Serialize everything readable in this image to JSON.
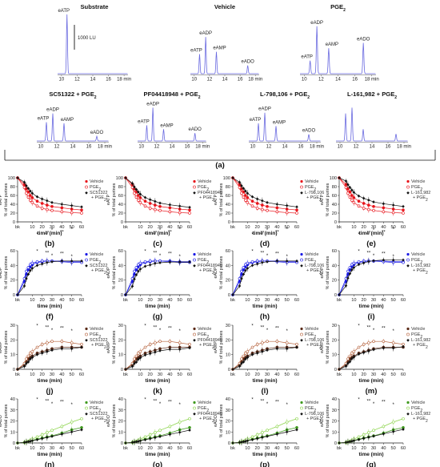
{
  "figure": {
    "section_a_label": "(a)",
    "scale_bar": "1000 LU",
    "time_unit": "18 min",
    "hplc_x_ticks": [
      "10",
      "12",
      "14",
      "16",
      "18 min"
    ]
  },
  "hplc_panels": [
    {
      "title": "Substrate",
      "sub": "",
      "peaks": [
        "eATP"
      ]
    },
    {
      "title": "Vehicle",
      "sub": "",
      "peaks": [
        "eATP",
        "eADP",
        "eAMP",
        "eADO"
      ]
    },
    {
      "title": "PGE",
      "sub": "2",
      "peaks": [
        "eATP",
        "eADP",
        "eAMP",
        "eADO"
      ]
    },
    {
      "title": "SC51322 + PGE",
      "sub": "2",
      "peaks": [
        "eATP",
        "eADP",
        "eAMP",
        "eADO"
      ]
    },
    {
      "title": "PF04418948 + PGE",
      "sub": "2",
      "peaks": [
        "eATP",
        "eADP",
        "eAMP",
        "eADO"
      ]
    },
    {
      "title": "L-798,106 + PGE",
      "sub": "2",
      "peaks": [
        "eATP",
        "eADP",
        "eAMP",
        "eADO"
      ]
    },
    {
      "title": "L-161,982 + PGE",
      "sub": "2",
      "peaks": []
    }
  ],
  "chart_data": {
    "type": "line",
    "x_categories": [
      "bk",
      "10",
      "20",
      "30",
      "40",
      "50",
      "60"
    ],
    "xlabel": "time (min)",
    "series_names": {
      "vehicle": "Vehicle",
      "pge2": "PGE",
      "pge2_sub": "2",
      "plus_pge2": "+ PGE"
    },
    "antagonists": [
      "SC51322",
      "PF04418948",
      "L-798,106",
      "L-161,982"
    ],
    "rows": [
      {
        "analyte": "eATP",
        "ylabel_side": "eATP",
        "ylabel": "% of total purines",
        "ylim": [
          0,
          100
        ],
        "yticks": [
          0,
          20,
          40,
          60,
          80,
          100
        ],
        "colors": {
          "vehicle": "#e8141b",
          "pge2": "#e8141b",
          "combo": "#111111"
        },
        "x": [
          0,
          2,
          4,
          6,
          8,
          10,
          15,
          20,
          25,
          30,
          40,
          50,
          60
        ],
        "vehicle": [
          100,
          85,
          75,
          68,
          60,
          55,
          47,
          42,
          38,
          35,
          32,
          29,
          27
        ],
        "pge2": [
          100,
          78,
          65,
          56,
          49,
          44,
          36,
          31,
          28,
          26,
          23,
          21,
          20
        ],
        "combo": [
          100,
          90,
          82,
          76,
          70,
          65,
          57,
          52,
          48,
          44,
          40,
          37,
          34
        ],
        "panels": [
          "(b)",
          "(c)",
          "(d)",
          "(e)"
        ]
      },
      {
        "analyte": "eADP",
        "ylabel_side": "eADP",
        "ylabel": "% of total purines",
        "ylim": [
          0,
          60
        ],
        "yticks": [
          0,
          20,
          40,
          60
        ],
        "colors": {
          "vehicle": "#1a1ae6",
          "pge2": "#1a1ae6",
          "combo": "#111111"
        },
        "x": [
          0,
          2,
          4,
          6,
          8,
          10,
          15,
          20,
          25,
          30,
          40,
          50,
          60
        ],
        "vehicle": [
          0,
          18,
          28,
          34,
          38,
          41,
          44,
          45,
          46,
          46,
          46,
          45,
          45
        ],
        "pge2": [
          0,
          22,
          32,
          37,
          41,
          43,
          45,
          46,
          46,
          46,
          45,
          44,
          44
        ],
        "combo": [
          0,
          12,
          22,
          28,
          33,
          36,
          40,
          42,
          44,
          45,
          46,
          46,
          46
        ],
        "panels": [
          "(f)",
          "(g)",
          "(h)",
          "(i)"
        ]
      },
      {
        "analyte": "eAMP",
        "ylabel_side": "eAMP",
        "ylabel": "% of total purines",
        "ylim": [
          0,
          30
        ],
        "yticks": [
          0,
          10,
          20,
          30
        ],
        "colors": {
          "vehicle": "#5a2a18",
          "pge2": "#b5603a",
          "combo": "#111111"
        },
        "x": [
          0,
          2,
          4,
          6,
          8,
          10,
          15,
          20,
          25,
          30,
          40,
          50,
          60
        ],
        "vehicle": [
          0,
          3,
          5,
          7,
          8,
          9,
          11,
          12,
          13,
          14,
          15,
          15,
          15
        ],
        "pge2": [
          0,
          4,
          7,
          9,
          11,
          12,
          15,
          17,
          18,
          19,
          19,
          18,
          17
        ],
        "combo": [
          0,
          2,
          4,
          5,
          7,
          8,
          10,
          11,
          12,
          13,
          14,
          14,
          15
        ],
        "panels": [
          "(j)",
          "(k)",
          "(l)",
          "(m)"
        ]
      },
      {
        "analyte": "eADO",
        "ylabel_side": "eADO",
        "ylabel": "% of total purines",
        "ylim": [
          0,
          40
        ],
        "yticks": [
          0,
          10,
          20,
          30,
          40
        ],
        "colors": {
          "vehicle": "#3f9a1e",
          "pge2": "#8bd44a",
          "combo": "#111111"
        },
        "x": [
          0,
          2,
          4,
          6,
          8,
          10,
          15,
          20,
          25,
          30,
          40,
          50,
          60
        ],
        "vehicle": [
          0,
          0.5,
          1,
          1.5,
          2,
          2.5,
          3.5,
          4.5,
          5.5,
          6.5,
          9,
          12,
          14
        ],
        "pge2": [
          0,
          0.5,
          1,
          1.5,
          2.5,
          3.5,
          5.5,
          7.5,
          9.5,
          11.5,
          15,
          19,
          22
        ],
        "combo": [
          0,
          0.5,
          0.8,
          1.2,
          1.6,
          2,
          3,
          4,
          5,
          6,
          8,
          10,
          12
        ],
        "panels": [
          "(n)",
          "(o)",
          "(p)",
          "(q)"
        ]
      }
    ]
  }
}
